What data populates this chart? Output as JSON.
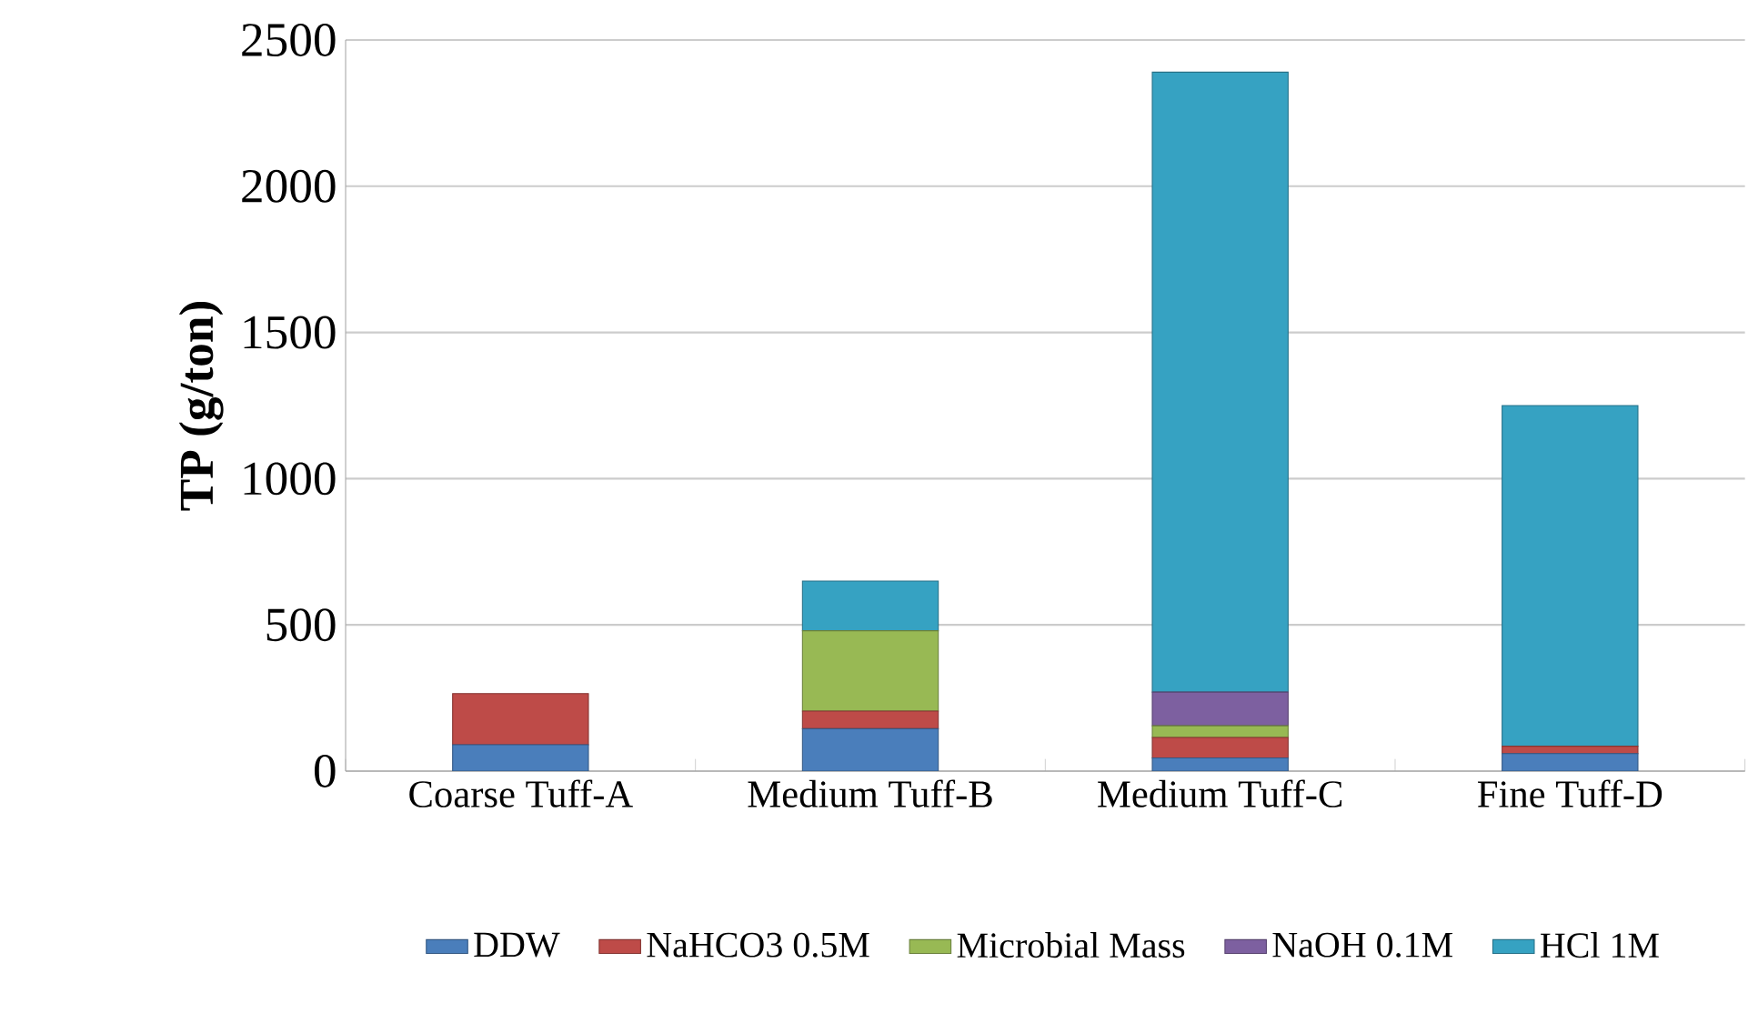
{
  "chart_data": {
    "type": "bar",
    "stacked": true,
    "ylabel": "TP  (g/ton)",
    "categories": [
      "Coarse Tuff-A",
      "Medium Tuff-B",
      "Medium Tuff-C",
      "Fine Tuff-D"
    ],
    "series": [
      {
        "name": "DDW",
        "color": "#4a7ebb",
        "values": [
          90,
          145,
          45,
          60
        ]
      },
      {
        "name": "NaHCO3 0.5M",
        "color": "#be4b48",
        "values": [
          175,
          60,
          70,
          25
        ]
      },
      {
        "name": "Microbial Mass",
        "color": "#98b954",
        "values": [
          0,
          275,
          40,
          0
        ]
      },
      {
        "name": "NaOH 0.1M",
        "color": "#7d60a0",
        "values": [
          0,
          0,
          115,
          0
        ]
      },
      {
        "name": "HCl 1M",
        "color": "#36a2c2",
        "values": [
          0,
          170,
          2120,
          1165
        ]
      }
    ],
    "ylim": [
      0,
      2500
    ],
    "yticks": [
      0,
      500,
      1000,
      1500,
      2000,
      2500
    ],
    "grid": "y",
    "legend": "bottom"
  }
}
